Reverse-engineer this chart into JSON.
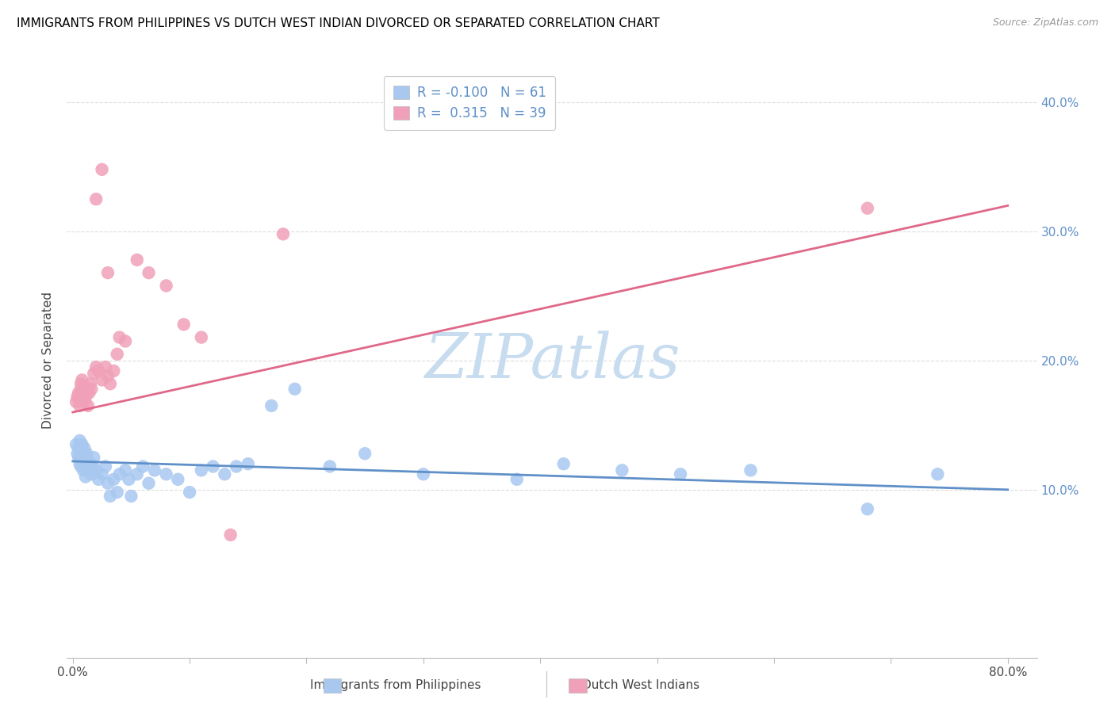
{
  "title": "IMMIGRANTS FROM PHILIPPINES VS DUTCH WEST INDIAN DIVORCED OR SEPARATED CORRELATION CHART",
  "source": "Source: ZipAtlas.com",
  "ylabel": "Divorced or Separated",
  "xlim_min": -0.005,
  "xlim_max": 0.825,
  "ylim_min": -0.03,
  "ylim_max": 0.43,
  "blue_color": "#A8C8F0",
  "pink_color": "#F0A0B8",
  "blue_line_color": "#6090C8",
  "pink_line_color": "#E06888",
  "R_blue": -0.1,
  "N_blue": 61,
  "R_pink": 0.315,
  "N_pink": 39,
  "blue_line_y0": 0.122,
  "blue_line_y1": 0.1,
  "pink_line_y0": 0.16,
  "pink_line_y1": 0.32,
  "watermark": "ZIPatlas",
  "watermark_color": "#C8DCF0",
  "background_color": "#FFFFFF",
  "grid_color": "#DDDDDD",
  "right_axis_color": "#6090C8",
  "legend_label_blue": "Immigrants from Philippines",
  "legend_label_pink": "Dutch West Indians",
  "blue_scatter_x": [
    0.003,
    0.004,
    0.005,
    0.005,
    0.006,
    0.006,
    0.007,
    0.007,
    0.007,
    0.008,
    0.008,
    0.009,
    0.009,
    0.01,
    0.01,
    0.011,
    0.011,
    0.012,
    0.012,
    0.013,
    0.014,
    0.015,
    0.016,
    0.017,
    0.018,
    0.02,
    0.022,
    0.025,
    0.028,
    0.03,
    0.032,
    0.035,
    0.038,
    0.04,
    0.045,
    0.048,
    0.05,
    0.055,
    0.06,
    0.065,
    0.07,
    0.08,
    0.09,
    0.1,
    0.11,
    0.12,
    0.13,
    0.14,
    0.15,
    0.17,
    0.19,
    0.22,
    0.25,
    0.3,
    0.38,
    0.42,
    0.47,
    0.52,
    0.58,
    0.68,
    0.74
  ],
  "blue_scatter_y": [
    0.135,
    0.128,
    0.132,
    0.125,
    0.138,
    0.12,
    0.13,
    0.125,
    0.118,
    0.135,
    0.122,
    0.128,
    0.115,
    0.132,
    0.118,
    0.125,
    0.11,
    0.128,
    0.118,
    0.122,
    0.115,
    0.12,
    0.112,
    0.118,
    0.125,
    0.115,
    0.108,
    0.112,
    0.118,
    0.105,
    0.095,
    0.108,
    0.098,
    0.112,
    0.115,
    0.108,
    0.095,
    0.112,
    0.118,
    0.105,
    0.115,
    0.112,
    0.108,
    0.098,
    0.115,
    0.118,
    0.112,
    0.118,
    0.12,
    0.165,
    0.178,
    0.118,
    0.128,
    0.112,
    0.108,
    0.12,
    0.115,
    0.112,
    0.115,
    0.085,
    0.112
  ],
  "pink_scatter_x": [
    0.003,
    0.004,
    0.005,
    0.006,
    0.007,
    0.007,
    0.008,
    0.008,
    0.009,
    0.01,
    0.01,
    0.011,
    0.012,
    0.013,
    0.014,
    0.015,
    0.016,
    0.018,
    0.02,
    0.022,
    0.025,
    0.028,
    0.03,
    0.032,
    0.035,
    0.038,
    0.04,
    0.045,
    0.055,
    0.065,
    0.08,
    0.095,
    0.11,
    0.135,
    0.18,
    0.03,
    0.02,
    0.025,
    0.68
  ],
  "pink_scatter_y": [
    0.168,
    0.172,
    0.175,
    0.165,
    0.178,
    0.182,
    0.17,
    0.185,
    0.175,
    0.168,
    0.18,
    0.172,
    0.178,
    0.165,
    0.175,
    0.182,
    0.178,
    0.19,
    0.195,
    0.192,
    0.185,
    0.195,
    0.188,
    0.182,
    0.192,
    0.205,
    0.218,
    0.215,
    0.278,
    0.268,
    0.258,
    0.228,
    0.218,
    0.065,
    0.298,
    0.268,
    0.325,
    0.348,
    0.318
  ]
}
